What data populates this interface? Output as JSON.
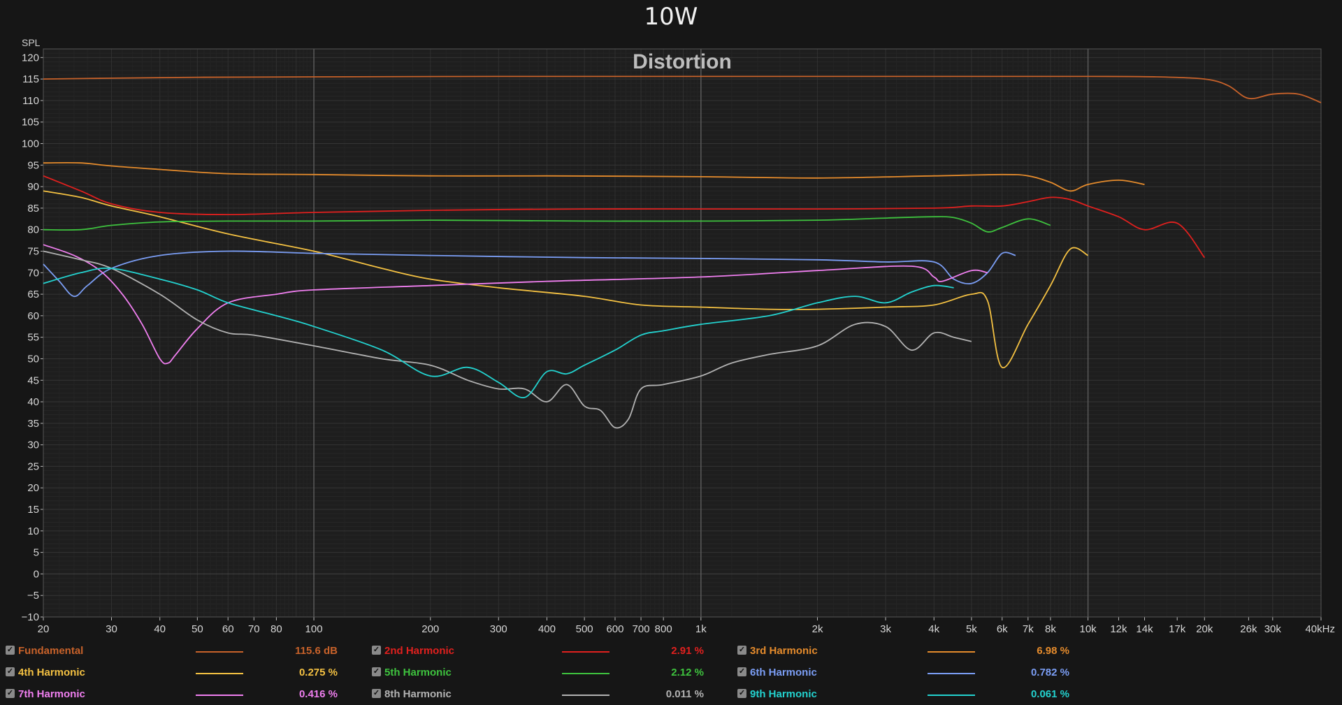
{
  "page_title": "10W",
  "chart_data": {
    "type": "line",
    "title": "Distortion",
    "ylabel": "SPL",
    "xscale": "log",
    "xlim": [
      20,
      40000
    ],
    "ylim": [
      -10,
      122
    ],
    "yticks": [
      -10,
      -5,
      0,
      5,
      10,
      15,
      20,
      25,
      30,
      35,
      40,
      45,
      50,
      55,
      60,
      65,
      70,
      75,
      80,
      85,
      90,
      95,
      100,
      105,
      110,
      115,
      120
    ],
    "xticks": [
      {
        "v": 20,
        "label": "20"
      },
      {
        "v": 30,
        "label": "30"
      },
      {
        "v": 40,
        "label": "40"
      },
      {
        "v": 50,
        "label": "50"
      },
      {
        "v": 60,
        "label": "60"
      },
      {
        "v": 70,
        "label": "70"
      },
      {
        "v": 80,
        "label": "80"
      },
      {
        "v": 100,
        "label": "100"
      },
      {
        "v": 200,
        "label": "200"
      },
      {
        "v": 300,
        "label": "300"
      },
      {
        "v": 400,
        "label": "400"
      },
      {
        "v": 500,
        "label": "500"
      },
      {
        "v": 600,
        "label": "600"
      },
      {
        "v": 700,
        "label": "700"
      },
      {
        "v": 800,
        "label": "800"
      },
      {
        "v": 1000,
        "label": "1k"
      },
      {
        "v": 2000,
        "label": "2k"
      },
      {
        "v": 3000,
        "label": "3k"
      },
      {
        "v": 4000,
        "label": "4k"
      },
      {
        "v": 5000,
        "label": "5k"
      },
      {
        "v": 6000,
        "label": "6k"
      },
      {
        "v": 7000,
        "label": "7k"
      },
      {
        "v": 8000,
        "label": "8k"
      },
      {
        "v": 10000,
        "label": "10k"
      },
      {
        "v": 12000,
        "label": "12k"
      },
      {
        "v": 14000,
        "label": "14k"
      },
      {
        "v": 17000,
        "label": "17k"
      },
      {
        "v": 20000,
        "label": "20k"
      },
      {
        "v": 26000,
        "label": "26k"
      },
      {
        "v": 30000,
        "label": "30k"
      },
      {
        "v": 40000,
        "label": "40kHz"
      }
    ],
    "grid": true,
    "series": [
      {
        "name": "Fundamental",
        "color": "#c8622a",
        "x": [
          20,
          30,
          50,
          100,
          300,
          1000,
          3000,
          10000,
          15000,
          20000,
          23000,
          26000,
          30000,
          35000,
          40000
        ],
        "y": [
          115,
          115.2,
          115.4,
          115.5,
          115.6,
          115.6,
          115.6,
          115.6,
          115.5,
          115,
          113.5,
          110.5,
          111.5,
          111.5,
          109.5
        ]
      },
      {
        "name": "2nd Harmonic",
        "color": "#e0201e",
        "x": [
          20,
          25,
          30,
          40,
          60,
          100,
          200,
          500,
          1000,
          2000,
          4000,
          5000,
          6000,
          7000,
          8000,
          9000,
          10000,
          12000,
          14000,
          17000,
          20000
        ],
        "y": [
          92.5,
          89,
          86,
          84,
          83.5,
          84,
          84.5,
          84.8,
          84.8,
          84.8,
          85,
          85.5,
          85.5,
          86.5,
          87.5,
          87,
          85.5,
          83,
          80,
          81.5,
          73.5
        ]
      },
      {
        "name": "3rd Harmonic",
        "color": "#e58b2c",
        "x": [
          20,
          25,
          30,
          40,
          60,
          100,
          200,
          400,
          1000,
          2000,
          4000,
          6000,
          7000,
          8000,
          9000,
          10000,
          12000,
          14000
        ],
        "y": [
          95.5,
          95.5,
          94.8,
          94,
          93,
          92.8,
          92.5,
          92.5,
          92.3,
          92,
          92.5,
          92.8,
          92.5,
          91,
          89,
          90.5,
          91.5,
          90.5
        ]
      },
      {
        "name": "4th Harmonic",
        "color": "#f4c142",
        "x": [
          20,
          25,
          30,
          40,
          60,
          100,
          150,
          200,
          300,
          500,
          700,
          1000,
          1500,
          2000,
          3000,
          4000,
          5000,
          5500,
          6000,
          7000,
          8000,
          9000,
          10000
        ],
        "y": [
          89,
          87.5,
          85.5,
          83,
          79,
          75,
          71,
          68.5,
          66.5,
          64.5,
          62.5,
          62,
          61.5,
          61.5,
          62,
          62.5,
          65,
          63.5,
          48,
          58,
          67,
          75.5,
          74
        ]
      },
      {
        "name": "5th Harmonic",
        "color": "#3ec23e",
        "x": [
          20,
          25,
          30,
          40,
          60,
          100,
          200,
          500,
          1000,
          2000,
          3000,
          4000,
          4500,
          5000,
          5500,
          6000,
          7000,
          8000
        ],
        "y": [
          80,
          80,
          81,
          81.8,
          82,
          82,
          82.2,
          82,
          82,
          82.2,
          82.7,
          83,
          82.8,
          81.5,
          79.5,
          80.5,
          82.5,
          81
        ]
      },
      {
        "name": "6th Harmonic",
        "color": "#7b9ef5",
        "x": [
          20,
          22,
          24,
          26,
          30,
          40,
          60,
          100,
          200,
          500,
          1000,
          2000,
          3000,
          4000,
          4500,
          5000,
          5500,
          6000,
          6500
        ],
        "y": [
          72,
          68,
          64.5,
          67,
          71,
          74,
          75,
          74.5,
          74,
          73.5,
          73.3,
          73,
          72.5,
          72.5,
          68.5,
          67.5,
          70,
          74.5,
          74
        ]
      },
      {
        "name": "7th Harmonic",
        "color": "#f07ff0",
        "x": [
          20,
          24,
          28,
          32,
          36,
          40,
          42,
          44,
          50,
          60,
          80,
          100,
          200,
          400,
          1000,
          2000,
          3500,
          4000,
          4200,
          5000,
          5500
        ],
        "y": [
          76.5,
          74,
          70.5,
          65,
          58,
          50,
          49,
          51,
          57,
          63,
          65,
          66,
          67,
          68,
          69,
          70.5,
          71.5,
          69,
          68,
          70.5,
          70
        ]
      },
      {
        "name": "8th Harmonic",
        "color": "#b2b2b2",
        "x": [
          20,
          25,
          30,
          40,
          50,
          60,
          70,
          100,
          150,
          200,
          250,
          300,
          350,
          400,
          450,
          500,
          550,
          600,
          650,
          700,
          800,
          1000,
          1200,
          1500,
          2000,
          2500,
          3000,
          3500,
          4000,
          4500,
          5000
        ],
        "y": [
          75,
          73,
          71,
          65,
          59,
          56,
          55.5,
          53,
          50,
          48.5,
          45,
          43,
          43,
          40,
          44,
          39,
          38,
          34,
          36,
          43,
          44,
          46,
          49,
          51,
          53,
          58,
          57.5,
          52,
          56,
          55,
          54
        ]
      },
      {
        "name": "9th Harmonic",
        "color": "#23d2cf",
        "x": [
          20,
          25,
          30,
          40,
          50,
          60,
          80,
          100,
          150,
          200,
          250,
          300,
          350,
          400,
          450,
          500,
          600,
          700,
          800,
          1000,
          1500,
          2000,
          2500,
          3000,
          3500,
          4000,
          4500
        ],
        "y": [
          67.5,
          70,
          71,
          68.5,
          66,
          63,
          60,
          57.5,
          52,
          46,
          48,
          44.5,
          41,
          47,
          46.5,
          48.5,
          52,
          55.5,
          56.5,
          58,
          60,
          63,
          64.5,
          63,
          65.5,
          67,
          66.5
        ]
      }
    ]
  },
  "legend": [
    {
      "name": "Fundamental",
      "value": "115.6 dB",
      "color": "#c8622a"
    },
    {
      "name": "2nd Harmonic",
      "value": "2.91 %",
      "color": "#e0201e"
    },
    {
      "name": "3rd Harmonic",
      "value": "6.98 %",
      "color": "#e58b2c"
    },
    {
      "name": "4th Harmonic",
      "value": "0.275 %",
      "color": "#f4c142"
    },
    {
      "name": "5th Harmonic",
      "value": "2.12 %",
      "color": "#3ec23e"
    },
    {
      "name": "6th Harmonic",
      "value": "0.782 %",
      "color": "#7b9ef5"
    },
    {
      "name": "7th Harmonic",
      "value": "0.416 %",
      "color": "#f07ff0"
    },
    {
      "name": "8th Harmonic",
      "value": "0.011 %",
      "color": "#b2b2b2"
    },
    {
      "name": "9th Harmonic",
      "value": "0.061 %",
      "color": "#23d2cf"
    }
  ]
}
